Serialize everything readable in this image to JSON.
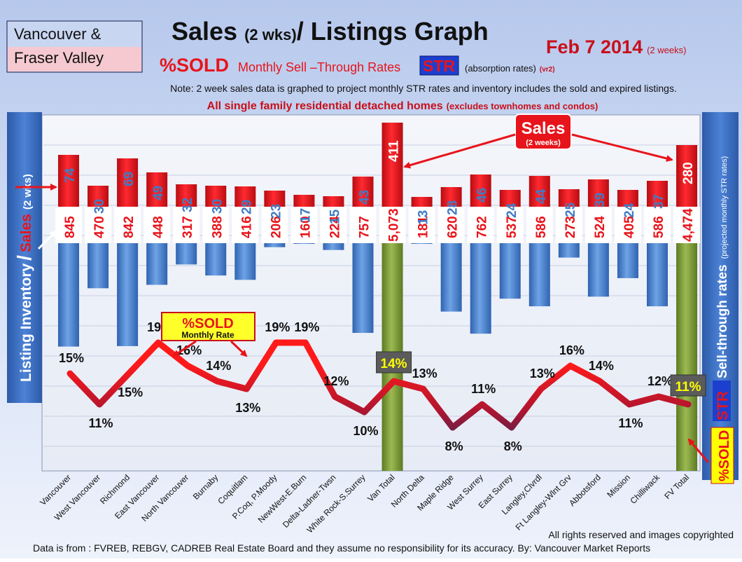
{
  "header": {
    "region_line1": "Vancouver &",
    "region_line2": "Fraser Valley",
    "title_main1": "Sales ",
    "title_small": "(2 wks)",
    "title_main2": "/ Listings Graph",
    "date": "Feb 7 2014",
    "date_note": "(2 weeks)",
    "subtitle_sold": "%SOLD",
    "subtitle_rates": "Monthly Sell –Through Rates",
    "str_badge": "STR",
    "absorption": "(absorption rates)",
    "version": "(vr2)",
    "note": "Note: 2 week sales data is graphed to project monthly STR rates and inventory includes the sold and expired listings.",
    "scope_main": "All single family residential detached homes",
    "scope_paren": "(excludes townhomes and condos)"
  },
  "side": {
    "left_inventory": "Listing Inventory",
    "left_slash": "/",
    "left_sales": "Sales",
    "left_paren": "(2 wks)",
    "right_main": "Sell-through rates",
    "right_paren": "(projected monthly STR rates)",
    "right_str": "STR",
    "right_sold": "%SOLD"
  },
  "callouts": {
    "sales_label": "Sales",
    "sales_sub": "(2 weeks)",
    "sold_label": "%SOLD",
    "sold_sub": "Monthly Rate"
  },
  "footer": {
    "copyright": "All rights reserved and  images copyrighted",
    "source": "Data is  from : FVREB, REBGV, CADREB Real Estate Board and they assume no responsibility  for its accuracy. By: Vancouver Market Reports"
  },
  "colors": {
    "sales_bar": "#e8141b",
    "inventory_bar": "#4f86d2",
    "total_bar": "#7e9a38",
    "line_high": "#e8141b",
    "line_low": "#2e2a55",
    "sales_text": "#3f7bc4",
    "inventory_text": "#e8141b"
  },
  "chart_data": {
    "type": "bar",
    "categories": [
      "Vancouver",
      "West Vancouver",
      "Richmond",
      "East Vancouver",
      "North Vancouver",
      "Burnaby",
      "Coquitlam",
      "P.Coq, P.Moody",
      "NewWest-E.Burn",
      "Delta-Ladner-Twsn",
      "White Rock-S.Surrey",
      "Van Total",
      "North Delta",
      "Maple Ridge",
      "West Surrey",
      "East Surrey",
      "Langley,Clvrdl",
      "Ft Langley-Wlnt Grv",
      "Abbotsford",
      "Mission",
      "Chilliwack",
      "FV Total"
    ],
    "series": [
      {
        "name": "Sales",
        "values": [
          74,
          30,
          69,
          49,
          32,
          30,
          29,
          23,
          17,
          15,
          43,
          411,
          13,
          28,
          46,
          24,
          44,
          25,
          39,
          24,
          37,
          280
        ]
      },
      {
        "name": "Listing Inventory",
        "values": [
          "845",
          "470",
          "842",
          "448",
          "317",
          "388",
          "416",
          "206",
          "160",
          "224",
          "757",
          "5,073",
          "181",
          "620",
          "762",
          "537",
          "586",
          "273",
          "524",
          "405",
          "586",
          "4,474"
        ]
      },
      {
        "name": "%SOLD",
        "values": [
          15,
          11,
          15,
          19,
          16,
          14,
          13,
          19,
          19,
          12,
          10,
          14,
          13,
          8,
          11,
          8,
          13,
          16,
          14,
          11,
          12,
          11
        ]
      }
    ],
    "percent_labels": [
      "15%",
      "11%",
      "15%",
      "19%",
      "16%",
      "14%",
      "13%",
      "19%",
      "19%",
      "12%",
      "10%",
      "14%",
      "13%",
      "8%",
      "11%",
      "8%",
      "13%",
      "16%",
      "14%",
      "11%",
      "12%",
      "11%"
    ],
    "totals": [
      "Van Total",
      "FV Total"
    ],
    "xlabel": "",
    "ylabel": ""
  }
}
